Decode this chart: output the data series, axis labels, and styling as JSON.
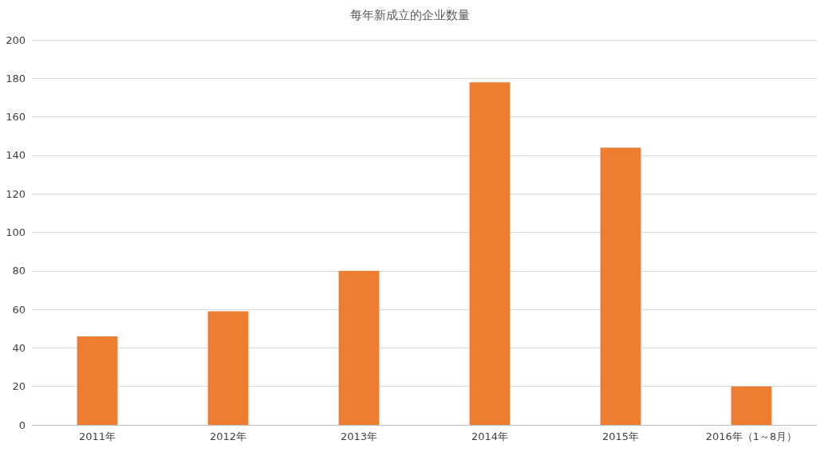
{
  "chart_data": {
    "type": "bar",
    "title": "每年新成立的企业数量",
    "categories": [
      "2011年",
      "2012年",
      "2013年",
      "2014年",
      "2015年",
      "2016年（1～8月）"
    ],
    "values": [
      46,
      59,
      80,
      178,
      144,
      20
    ],
    "color": "#ed7d31",
    "ylim": [
      0,
      200
    ],
    "yticks": [
      0,
      20,
      40,
      60,
      80,
      100,
      120,
      140,
      160,
      180,
      200
    ],
    "grid": "y"
  }
}
